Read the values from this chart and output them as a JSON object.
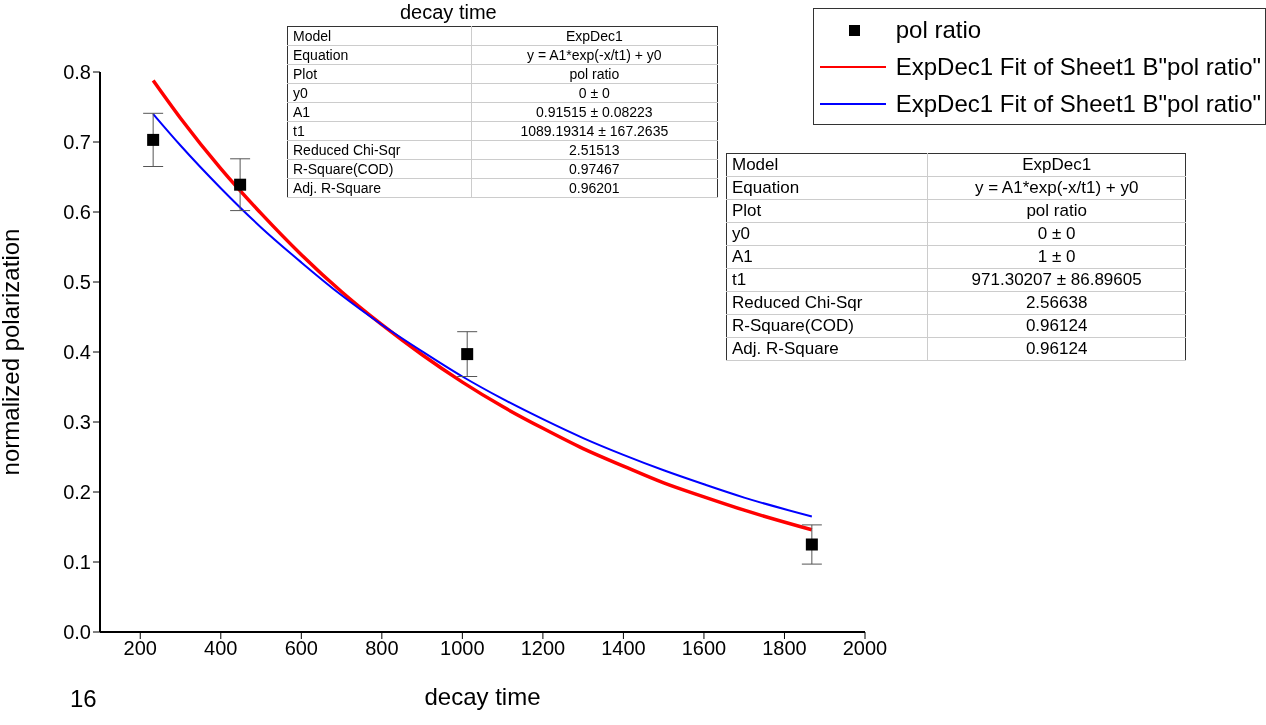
{
  "chart_data": {
    "type": "scatter",
    "title": "decay time",
    "xlabel": "decay time",
    "ylabel": "normalized polarization",
    "xlim": [
      100,
      2000
    ],
    "xticks": [
      200,
      400,
      600,
      800,
      1000,
      1200,
      1400,
      1600,
      1800,
      2000
    ],
    "ylim": [
      0,
      0.8
    ],
    "yticks": [
      {
        "value": 0,
        "label": "0.0"
      },
      0.1,
      0.2,
      0.3,
      0.4,
      0.5,
      0.6,
      0.7,
      0.8
    ],
    "legend": "top right",
    "grid": false,
    "series": [
      {
        "name": "pol ratio",
        "marker": "square",
        "color": "#000000",
        "x": [
          232,
          448,
          1012,
          1868
        ],
        "values": [
          0.703,
          0.639,
          0.397,
          0.125
        ],
        "errors": [
          0.038,
          0.037,
          0.032,
          0.028
        ]
      },
      {
        "name": "ExpDec1 Fit of Sheet1 B\"pol ratio\"",
        "type": "line",
        "color": "#ff0000",
        "line_style": "solid",
        "x": [
          232,
          300,
          400,
          500,
          600,
          700,
          800,
          900,
          1000,
          1100,
          1200,
          1300,
          1400,
          1500,
          1600,
          1700,
          1868
        ],
        "values": [
          0.788,
          0.734,
          0.662,
          0.598,
          0.539,
          0.486,
          0.439,
          0.396,
          0.357,
          0.322,
          0.291,
          0.262,
          0.237,
          0.213,
          0.193,
          0.174,
          0.146
        ]
      },
      {
        "name": "ExpDec1 Fit of Sheet1 B\"pol ratio\"",
        "type": "line",
        "color": "#0000ff",
        "line_style": "solid",
        "x": [
          232,
          300,
          400,
          500,
          600,
          700,
          800,
          900,
          1000,
          1100,
          1200,
          1300,
          1400,
          1500,
          1600,
          1700,
          1868
        ],
        "values": [
          0.74,
          0.695,
          0.634,
          0.578,
          0.528,
          0.481,
          0.439,
          0.401,
          0.365,
          0.333,
          0.304,
          0.277,
          0.253,
          0.231,
          0.211,
          0.192,
          0.165
        ]
      }
    ],
    "annotations": [
      "Model",
      "ExpDec1",
      "Equation",
      "y = A1*exp(-x/t1) + y0",
      "Plot",
      "pol ratio",
      "y0",
      "0 ± 0",
      "A1",
      "0.91515 ± 0.08223",
      "t1",
      "1089.19314 ± 167.2635",
      "Reduced Chi-Sqr",
      "2.51513",
      "R-Square(COD)",
      "0.97467",
      "Adj. R-Square",
      "0.96201",
      "Model",
      "ExpDec1",
      "Equation",
      "y = A1*exp(-x/t1) + y0",
      "Plot",
      "pol ratio",
      "y0",
      "0 ± 0",
      "A1",
      "1 ± 0",
      "t1",
      "971.30207 ± 86.89605",
      "Reduced Chi-Sqr",
      "2.56638",
      "R-Square(COD)",
      "0.96124",
      "Adj. R-Square",
      "0.96124",
      "16"
    ]
  }
}
